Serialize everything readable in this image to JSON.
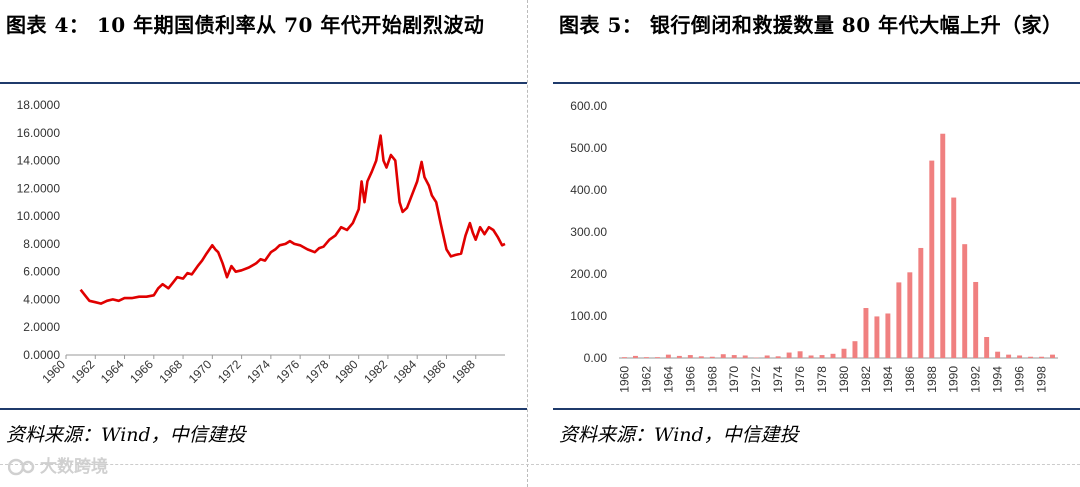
{
  "left": {
    "title": "图表 4： 10 年期国债利率从 70 年代开始剧烈波动",
    "source": "资料来源：Wind，中信建投"
  },
  "right": {
    "title": "图表 5： 银行倒闭和救援数量 80 年代大幅上升（家）",
    "source": "资料来源：Wind，中信建投"
  },
  "watermark": "大数跨境",
  "colors": {
    "line": "#e00000",
    "bar": "#f08080",
    "rule": "#1f3a6b"
  },
  "chart_data": [
    {
      "type": "line",
      "title": "",
      "xlabel": "",
      "ylabel": "",
      "ylim": [
        0,
        18
      ],
      "yticks": [
        "0.0000",
        "2.0000",
        "4.0000",
        "6.0000",
        "8.0000",
        "10.0000",
        "12.0000",
        "14.0000",
        "16.0000",
        "18.0000"
      ],
      "xticks": [
        "1960",
        "1962",
        "1964",
        "1966",
        "1968",
        "1970",
        "1972",
        "1974",
        "1976",
        "1978",
        "1980",
        "1982",
        "1984",
        "1986",
        "1988"
      ],
      "xlim": [
        1960,
        1990
      ],
      "series": [
        {
          "x": [
            1961.0,
            1961.3,
            1961.6,
            1962.0,
            1962.4,
            1962.8,
            1963.2,
            1963.6,
            1964.0,
            1964.5,
            1965.0,
            1965.5,
            1966.0,
            1966.3,
            1966.6,
            1967.0,
            1967.3,
            1967.6,
            1968.0,
            1968.3,
            1968.6,
            1969.0,
            1969.3,
            1969.6,
            1970.0,
            1970.2,
            1970.4,
            1970.7,
            1971.0,
            1971.3,
            1971.6,
            1972.0,
            1972.5,
            1973.0,
            1973.3,
            1973.6,
            1974.0,
            1974.3,
            1974.6,
            1975.0,
            1975.3,
            1975.6,
            1976.0,
            1976.5,
            1977.0,
            1977.3,
            1977.6,
            1978.0,
            1978.4,
            1978.8,
            1979.2,
            1979.6,
            1980.0,
            1980.2,
            1980.4,
            1980.6,
            1980.9,
            1981.2,
            1981.5,
            1981.7,
            1981.9,
            1982.2,
            1982.5,
            1982.8,
            1983.0,
            1983.3,
            1983.6,
            1984.0,
            1984.3,
            1984.5,
            1984.8,
            1985.0,
            1985.3,
            1985.6,
            1986.0,
            1986.3,
            1986.6,
            1987.0,
            1987.3,
            1987.6,
            1987.8,
            1988.0,
            1988.3,
            1988.6,
            1988.9,
            1989.2,
            1989.5,
            1989.8,
            1990.0
          ],
          "y": [
            4.7,
            4.3,
            3.9,
            3.8,
            3.7,
            3.9,
            4.0,
            3.9,
            4.1,
            4.1,
            4.2,
            4.2,
            4.3,
            4.8,
            5.1,
            4.8,
            5.2,
            5.6,
            5.5,
            5.9,
            5.8,
            6.4,
            6.8,
            7.3,
            7.9,
            7.6,
            7.4,
            6.6,
            5.6,
            6.4,
            6.0,
            6.1,
            6.3,
            6.6,
            6.9,
            6.8,
            7.4,
            7.6,
            7.9,
            8.0,
            8.2,
            8.0,
            7.9,
            7.6,
            7.4,
            7.7,
            7.8,
            8.3,
            8.6,
            9.2,
            9.0,
            9.5,
            10.5,
            12.5,
            11.0,
            12.5,
            13.2,
            14.0,
            15.8,
            14.0,
            13.5,
            14.4,
            14.0,
            11.0,
            10.3,
            10.6,
            11.4,
            12.5,
            13.9,
            12.8,
            12.2,
            11.5,
            11.0,
            9.5,
            7.6,
            7.1,
            7.2,
            7.3,
            8.6,
            9.5,
            8.8,
            8.3,
            9.2,
            8.7,
            9.2,
            9.0,
            8.5,
            7.9,
            8.0
          ]
        }
      ]
    },
    {
      "type": "bar",
      "title": "",
      "xlabel": "",
      "ylabel": "",
      "ylim": [
        0,
        600
      ],
      "yticks": [
        "0.00",
        "100.00",
        "200.00",
        "300.00",
        "400.00",
        "500.00",
        "600.00"
      ],
      "categories": [
        "1960",
        "1961",
        "1962",
        "1963",
        "1964",
        "1965",
        "1966",
        "1967",
        "1968",
        "1969",
        "1970",
        "1971",
        "1972",
        "1973",
        "1974",
        "1975",
        "1976",
        "1977",
        "1978",
        "1979",
        "1980",
        "1981",
        "1982",
        "1983",
        "1984",
        "1985",
        "1986",
        "1987",
        "1988",
        "1989",
        "1990",
        "1991",
        "1992",
        "1993",
        "1994",
        "1995",
        "1996",
        "1997",
        "1998",
        "1999"
      ],
      "tick_labels": [
        "1960",
        "1962",
        "1964",
        "1966",
        "1968",
        "1970",
        "1972",
        "1974",
        "1976",
        "1978",
        "1980",
        "1982",
        "1984",
        "1986",
        "1988",
        "1990",
        "1992",
        "1994",
        "1996",
        "1998"
      ],
      "values": [
        2,
        5,
        2,
        2,
        8,
        5,
        7,
        4,
        3,
        9,
        7,
        6,
        1,
        6,
        4,
        13,
        16,
        6,
        7,
        10,
        22,
        40,
        119,
        99,
        106,
        180,
        204,
        262,
        470,
        534,
        382,
        271,
        181,
        50,
        15,
        8,
        6,
        3,
        3,
        8
      ]
    }
  ]
}
